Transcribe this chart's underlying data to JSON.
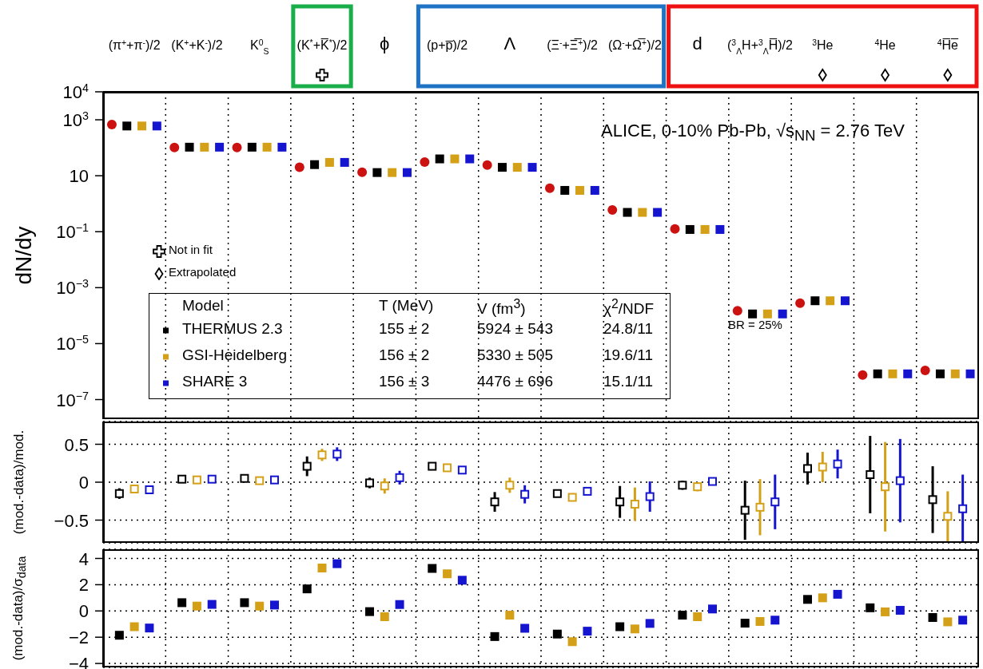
{
  "chart_data": [
    {
      "type": "scatter",
      "ylabel": "dN/dy",
      "log": true,
      "grid": "x",
      "legend": "bottom left",
      "marker": "square",
      "categories": [
        "(π$^{+}$+π$^{-}$)/2",
        "(K$^{+}$+K$^{-}$)/2",
        "K$^{0}$$_{S}$",
        "(K$^{*}$+K̅$^{*}$)/2",
        "ϕ",
        "(p+p̅)/2",
        "Λ",
        "(Ξ$^{-}$+Ξ̅$^{+}$)/2",
        "(Ω$^{-}$+Ω̅$^{+}$)/2",
        "d",
        "($^{3}$$_{Λ}$H+$^{3}$$_{Λ}$H̅)/2",
        "$^{3}$He",
        "$^{4}$He",
        "$^{4}$H̅e̅"
      ],
      "ylim": [
        2e-08,
        10000
      ],
      "yticks": [
        {
          "value": 10000,
          "label": "10$^{4}$"
        },
        {
          "value": 1000,
          "label": "10$^{3}$"
        },
        10,
        {
          "value": 0.1,
          "label": "10$^{−1}$"
        },
        {
          "value": 0.001,
          "label": "10$^{−3}$"
        },
        {
          "value": 1e-05,
          "label": "10$^{−5}$"
        },
        {
          "value": 1e-07,
          "label": "10$^{−7}$"
        }
      ],
      "series": [
        {
          "color": "#cc1111",
          "marker": "circle",
          "values": [
            680,
            103,
            103,
            20,
            13.3,
            31,
            24,
            3.6,
            0.6,
            0.126,
            0.00015,
            0.00028,
            7.5e-07,
            1.1e-06
          ]
        },
        {
          "name": "THERMUS 2.3",
          "color": "#000000",
          "values": [
            600,
            105,
            105,
            25,
            13,
            40,
            20,
            3.0,
            0.49,
            0.12,
            0.000115,
            0.00034,
            8.3e-07,
            8.3e-07
          ]
        },
        {
          "name": "GSI-Heidelberg",
          "color": "#d4a017",
          "values": [
            600,
            105,
            105,
            30,
            13,
            40,
            20,
            3.0,
            0.49,
            0.12,
            0.000115,
            0.00034,
            8.3e-07,
            8.3e-07
          ]
        },
        {
          "name": "SHARE 3",
          "color": "#1515d0",
          "values": [
            600,
            105,
            105,
            30,
            13,
            40,
            20,
            3.0,
            0.49,
            0.12,
            0.000115,
            0.00034,
            8.3e-07,
            8.3e-07
          ]
        }
      ],
      "annotations": [
        "ALICE, 0-10% Pb-Pb, √s$_{NN}$ = 2.76 TeV",
        "Not in fit",
        "Extrapolated",
        "BR = 25%",
        "Model",
        "T (MeV)",
        "V (fm$^{3}$)",
        "χ$^{2}$/NDF",
        "155 ± 2",
        "5924 ± 543",
        "24.8/11",
        "156 ± 2",
        "5330 ± 505",
        "19.6/11",
        "156 ± 3",
        "4476 ± 696",
        "15.1/11"
      ]
    },
    {
      "type": "scatter",
      "ylabel": "(mod.-data)/mod.",
      "grid": true,
      "tick_labels": "y",
      "marker": "square",
      "categories": [
        null,
        null,
        null,
        null,
        null,
        null,
        null,
        null,
        null,
        null,
        null,
        null,
        null,
        null
      ],
      "ylim": [
        -0.8,
        0.8
      ],
      "yticks": [
        0.5,
        0,
        {
          "value": -0.5,
          "label": "−0.5"
        }
      ],
      "series": [
        {
          "color": "#000000",
          "values": [
            -0.15,
            0.04,
            0.05,
            0.21,
            -0.01,
            0.21,
            -0.26,
            -0.15,
            -0.26,
            -0.04,
            -0.37,
            0.18,
            0.1,
            -0.23
          ],
          "errors": [
            0.07,
            0.04,
            0.04,
            0.13,
            0.07,
            null,
            0.13,
            0.04,
            0.21,
            0.06,
            0.39,
            0.21,
            0.51,
            0.44
          ]
        },
        {
          "color": "#d4a017",
          "values": [
            -0.09,
            0.03,
            0.02,
            0.36,
            -0.05,
            0.19,
            -0.04,
            -0.2,
            -0.29,
            -0.06,
            -0.33,
            0.2,
            -0.06,
            -0.45
          ],
          "errors": [
            0.05,
            0.04,
            0.04,
            0.08,
            0.1,
            null,
            0.1,
            0.04,
            0.22,
            0.06,
            0.37,
            0.2,
            0.59,
            0.33
          ]
        },
        {
          "color": "#1515d0",
          "values": [
            -0.1,
            0.04,
            0.03,
            0.37,
            0.06,
            0.16,
            -0.16,
            -0.12,
            -0.19,
            0.01,
            -0.26,
            0.24,
            0.02,
            -0.35
          ],
          "errors": [
            0.05,
            0.04,
            0.04,
            0.09,
            0.09,
            null,
            0.12,
            0.04,
            0.2,
            0.05,
            0.36,
            0.19,
            0.55,
            0.45
          ]
        }
      ]
    },
    {
      "type": "scatter",
      "ylabel": "(mod.-data)/σ$_{data}$",
      "grid": true,
      "tick_labels": "y",
      "marker": "square",
      "categories": [
        null,
        null,
        null,
        null,
        null,
        null,
        null,
        null,
        null,
        null,
        null,
        null,
        null,
        null
      ],
      "ylim": [
        -4.3,
        4.7
      ],
      "yticks": [
        4,
        2,
        0,
        {
          "value": -2,
          "label": "−2"
        },
        {
          "value": -4,
          "label": "−4"
        }
      ],
      "series": [
        {
          "color": "#000000",
          "values": [
            -1.85,
            0.63,
            0.63,
            1.68,
            -0.05,
            3.24,
            -1.95,
            -1.76,
            -1.2,
            -0.32,
            -0.93,
            0.88,
            0.24,
            -0.5
          ]
        },
        {
          "color": "#d4a017",
          "values": [
            -1.2,
            0.37,
            0.37,
            3.27,
            -0.44,
            2.83,
            -0.32,
            -2.34,
            -1.37,
            -0.44,
            -0.8,
            1.0,
            -0.07,
            -0.83
          ]
        },
        {
          "color": "#1515d0",
          "values": [
            -1.3,
            0.5,
            0.45,
            3.6,
            0.49,
            2.34,
            -1.32,
            -1.54,
            -0.95,
            0.15,
            -0.7,
            1.27,
            0.05,
            -0.7
          ]
        }
      ]
    }
  ]
}
